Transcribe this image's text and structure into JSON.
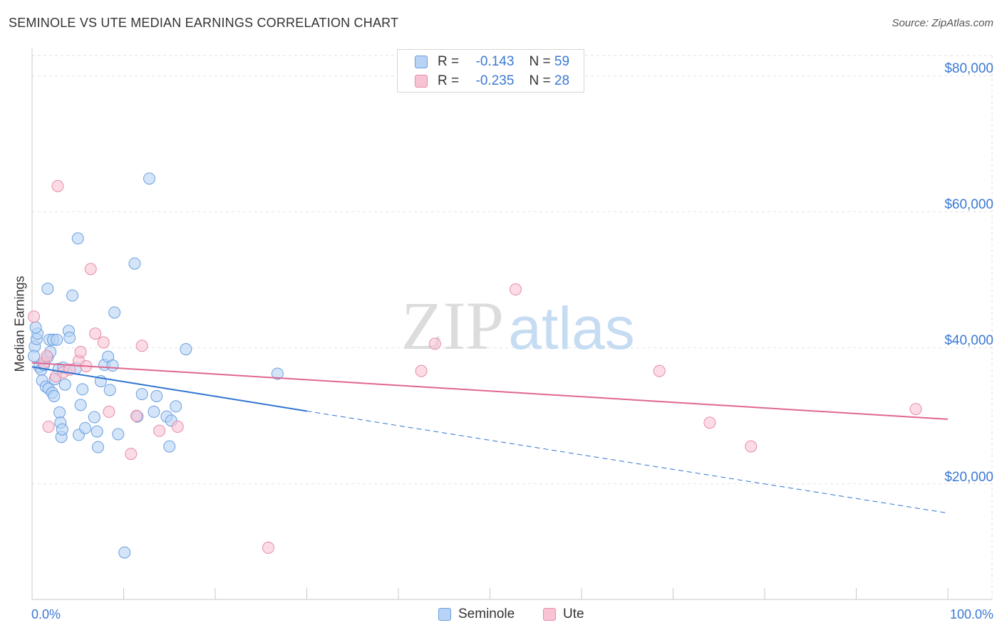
{
  "header": {
    "title": "SEMINOLE VS UTE MEDIAN EARNINGS CORRELATION CHART",
    "source": "Source: ZipAtlas.com"
  },
  "watermark": {
    "zip": "ZIP",
    "atlas": "atlas"
  },
  "legend": {
    "items": [
      {
        "label": "R =",
        "r_value": "-0.143",
        "n_label": "N =",
        "n_value": "59"
      },
      {
        "label": "R =",
        "r_value": "-0.235",
        "n_label": "N =",
        "n_value": "28"
      }
    ]
  },
  "bottom_legend": {
    "seminole": "Seminole",
    "ute": "Ute"
  },
  "colors": {
    "seminole_fill": "#b8d3f5",
    "seminole_stroke": "#6a9fe0",
    "seminole_line": "#2f74d0",
    "ute_fill": "#f8c4d4",
    "ute_stroke": "#e88aa8",
    "ute_line": "#e0668f",
    "tick_text": "#3b78d4"
  },
  "chart_data": {
    "type": "scatter",
    "title": "SEMINOLE VS UTE MEDIAN EARNINGS CORRELATION CHART",
    "xlabel": "",
    "ylabel": "Median Earnings",
    "xlim": [
      0,
      100
    ],
    "ylim": [
      3000,
      83000
    ],
    "x_tick_labels": [
      "0.0%",
      "100.0%"
    ],
    "y_ticks": [
      20000,
      40000,
      60000,
      80000
    ],
    "y_tick_labels": [
      "$20,000",
      "$40,000",
      "$60,000",
      "$80,000"
    ],
    "grid": true,
    "series": [
      {
        "name": "Seminole",
        "r": -0.143,
        "n": 59,
        "points": [
          [
            0.3,
            40200
          ],
          [
            0.5,
            41300
          ],
          [
            0.6,
            42100
          ],
          [
            0.8,
            37200
          ],
          [
            1.0,
            36800
          ],
          [
            1.1,
            35200
          ],
          [
            1.3,
            37500
          ],
          [
            1.5,
            34300
          ],
          [
            1.7,
            38600
          ],
          [
            1.8,
            34000
          ],
          [
            1.9,
            41200
          ],
          [
            2.0,
            39400
          ],
          [
            1.7,
            48700
          ],
          [
            2.2,
            33400
          ],
          [
            2.3,
            41200
          ],
          [
            2.4,
            32900
          ],
          [
            2.5,
            35400
          ],
          [
            2.7,
            41200
          ],
          [
            2.9,
            36900
          ],
          [
            3.0,
            30500
          ],
          [
            3.1,
            29000
          ],
          [
            3.2,
            26900
          ],
          [
            3.3,
            28000
          ],
          [
            3.4,
            37100
          ],
          [
            3.6,
            34600
          ],
          [
            4.0,
            42500
          ],
          [
            4.1,
            41500
          ],
          [
            4.4,
            47700
          ],
          [
            4.8,
            37000
          ],
          [
            5.1,
            27200
          ],
          [
            5.0,
            56100
          ],
          [
            5.3,
            31600
          ],
          [
            5.5,
            33900
          ],
          [
            5.8,
            28200
          ],
          [
            6.8,
            29800
          ],
          [
            7.1,
            27700
          ],
          [
            7.2,
            25400
          ],
          [
            7.5,
            35100
          ],
          [
            7.9,
            37500
          ],
          [
            8.3,
            38700
          ],
          [
            8.5,
            33800
          ],
          [
            8.8,
            37400
          ],
          [
            9.0,
            45200
          ],
          [
            9.4,
            27300
          ],
          [
            10.1,
            9900
          ],
          [
            11.2,
            52400
          ],
          [
            11.5,
            29900
          ],
          [
            12.0,
            33200
          ],
          [
            12.8,
            64900
          ],
          [
            13.3,
            30600
          ],
          [
            13.6,
            32900
          ],
          [
            14.7,
            29900
          ],
          [
            15.0,
            25500
          ],
          [
            15.2,
            29300
          ],
          [
            15.7,
            31400
          ],
          [
            16.8,
            39800
          ],
          [
            26.8,
            36200
          ],
          [
            0.2,
            38800
          ],
          [
            0.4,
            43000
          ]
        ]
      },
      {
        "name": "Ute",
        "r": -0.235,
        "n": 28,
        "points": [
          [
            0.2,
            44600
          ],
          [
            1.3,
            37800
          ],
          [
            1.6,
            38800
          ],
          [
            1.8,
            28400
          ],
          [
            2.6,
            35800
          ],
          [
            2.8,
            63800
          ],
          [
            3.4,
            36400
          ],
          [
            4.1,
            36800
          ],
          [
            5.1,
            38100
          ],
          [
            5.3,
            39400
          ],
          [
            5.9,
            37300
          ],
          [
            6.4,
            51600
          ],
          [
            6.9,
            42100
          ],
          [
            7.8,
            40800
          ],
          [
            8.4,
            30600
          ],
          [
            10.8,
            24400
          ],
          [
            11.4,
            30000
          ],
          [
            12.0,
            40300
          ],
          [
            13.9,
            27800
          ],
          [
            15.9,
            28400
          ],
          [
            25.8,
            10600
          ],
          [
            42.5,
            36600
          ],
          [
            44.0,
            40600
          ],
          [
            52.8,
            48600
          ],
          [
            68.5,
            36600
          ],
          [
            74.0,
            29000
          ],
          [
            78.5,
            25500
          ],
          [
            96.5,
            31000
          ]
        ]
      }
    ],
    "trendlines": [
      {
        "series": "Seminole",
        "solid_from": [
          0,
          37200
        ],
        "solid_to": [
          30,
          30700
        ],
        "dashed_to": [
          100,
          15700
        ]
      },
      {
        "series": "Ute",
        "from": [
          0,
          37800
        ],
        "to": [
          100,
          29500
        ]
      }
    ]
  }
}
